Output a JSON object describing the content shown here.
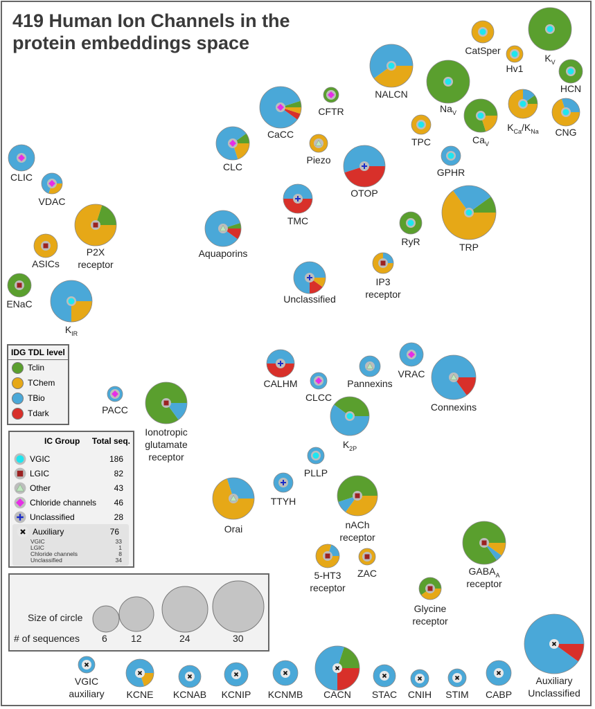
{
  "title_lines": [
    "419 Human Ion Channels in the",
    "protein embeddings space"
  ],
  "colors": {
    "Tclin": "#5a9f2e",
    "TChem": "#e6a817",
    "TBio": "#4aa8d8",
    "Tdark": "#d8302a",
    "VGIC": "#1ee6f0",
    "LGIC": "#9b2222",
    "Other": "#bfe8c0",
    "Chloride channels": "#e62ee6",
    "Unclassified": "#1a2cc8",
    "Auxiliary": "#111111"
  },
  "tdl_legend": {
    "title": "IDG TDL level",
    "items": [
      "Tclin",
      "TChem",
      "TBio",
      "Tdark"
    ]
  },
  "ic_legend": {
    "header_group": "IC Group",
    "header_total": "Total seq.",
    "items": [
      {
        "label": "VGIC",
        "total": "186",
        "marker": "circle-icon"
      },
      {
        "label": "LGIC",
        "total": "82",
        "marker": "square-icon"
      },
      {
        "label": "Other",
        "total": "43",
        "marker": "triangle-icon"
      },
      {
        "label": "Chloride channels",
        "total": "46",
        "marker": "diamond-icon"
      },
      {
        "label": "Unclassified",
        "total": "28",
        "marker": "plus-icon"
      },
      {
        "label": "Auxiliary",
        "total": "76",
        "marker": "x-icon"
      }
    ],
    "aux_breakdown": [
      {
        "label": "VGIC",
        "total": "33"
      },
      {
        "label": "LGIC",
        "total": "1"
      },
      {
        "label": "Chloride channels",
        "total": "8"
      },
      {
        "label": "Unclassified",
        "total": "34"
      }
    ]
  },
  "size_legend": {
    "size_label": "Size of circle",
    "count_label": "# of sequences",
    "values": [
      "6",
      "12",
      "24",
      "30"
    ]
  },
  "nodes": [
    {
      "label": "CatSper",
      "group": "VGIC",
      "tdl": {
        "TChem": 1
      }
    },
    {
      "label": "Hv1",
      "group": "VGIC",
      "tdl": {
        "TChem": 1
      }
    },
    {
      "label": "K",
      "sub": "V",
      "group": "VGIC",
      "tdl": {
        "Tclin": 1
      }
    },
    {
      "label": "HCN",
      "group": "VGIC",
      "tdl": {
        "Tclin": 1
      }
    },
    {
      "label": "NALCN",
      "group": "VGIC",
      "tdl": {
        "TBio": 0.6,
        "TChem": 0.4
      }
    },
    {
      "label": "Na",
      "sub": "V",
      "group": "VGIC",
      "tdl": {
        "Tclin": 1
      }
    },
    {
      "label": "Ca",
      "sub": "V",
      "group": "VGIC",
      "tdl": {
        "Tclin": 0.8,
        "TChem": 0.2
      }
    },
    {
      "label": "K",
      "sub": "Ca",
      "label2": "/K",
      "sub2": "Na",
      "group": "VGIC",
      "tdl": {
        "Tclin": 0.1,
        "TBio": 0.15,
        "TChem": 0.75
      }
    },
    {
      "label": "CNG",
      "group": "VGIC",
      "tdl": {
        "TBio": 0.3,
        "TChem": 0.7
      }
    },
    {
      "label": "TPC",
      "group": "VGIC",
      "tdl": {
        "TChem": 1
      }
    },
    {
      "label": "GPHR",
      "group": "VGIC",
      "tdl": {
        "TBio": 1
      }
    },
    {
      "label": "CFTR",
      "group": "Chloride channels",
      "tdl": {
        "Tclin": 1
      }
    },
    {
      "label": "CaCC",
      "group": "Chloride channels",
      "tdl": {
        "Tclin": 0.05,
        "TBio": 0.85,
        "Tdark": 0.05,
        "TChem": 0.05
      }
    },
    {
      "label": "CLC",
      "group": "Chloride channels",
      "tdl": {
        "Tclin": 0.1,
        "TBio": 0.7,
        "TChem": 0.2
      }
    },
    {
      "label": "Piezo",
      "group": "Other",
      "tdl": {
        "TChem": 1
      }
    },
    {
      "label": "OTOP",
      "group": "Unclassified",
      "tdl": {
        "TBio": 0.55,
        "Tdark": 0.45
      }
    },
    {
      "label": "CLIC",
      "group": "Chloride channels",
      "tdl": {
        "TBio": 1
      }
    },
    {
      "label": "VDAC",
      "group": "Chloride channels",
      "tdl": {
        "TBio": 0.7,
        "TChem": 0.3
      }
    },
    {
      "label": "P2X",
      "label_line2": "receptor",
      "group": "LGIC",
      "tdl": {
        "Tclin": 0.2,
        "TChem": 0.8
      }
    },
    {
      "label": "ASICs",
      "group": "LGIC",
      "tdl": {
        "TChem": 1
      }
    },
    {
      "label": "ENaC",
      "group": "LGIC",
      "tdl": {
        "Tclin": 1
      }
    },
    {
      "label": "K",
      "sub": "IR",
      "group": "VGIC",
      "tdl": {
        "TBio": 0.75,
        "TChem": 0.25
      }
    },
    {
      "label": "TMC",
      "group": "Unclassified",
      "tdl": {
        "TBio": 0.5,
        "Tdark": 0.5
      }
    },
    {
      "label": "Aquaporins",
      "group": "Other",
      "tdl": {
        "Tclin": 0.05,
        "TBio": 0.85,
        "Tdark": 0.1
      }
    },
    {
      "label": "TRP",
      "group": "VGIC",
      "tdl": {
        "Tclin": 0.1,
        "TBio": 0.25,
        "TChem": 0.65
      }
    },
    {
      "label": "RyR",
      "group": "VGIC",
      "tdl": {
        "Tclin": 1
      }
    },
    {
      "label": "IP3",
      "label_line2": "receptor",
      "group": "LGIC",
      "tdl": {
        "TBio": 0.25,
        "TChem": 0.75
      }
    },
    {
      "label": "Unclassified",
      "group": "Unclassified",
      "tdl": {
        "TBio": 0.75,
        "Tdark": 0.15,
        "TChem": 0.1
      }
    },
    {
      "label": "CALHM",
      "group": "Unclassified",
      "tdl": {
        "TBio": 0.5,
        "Tdark": 0.5
      }
    },
    {
      "label": "CLCC",
      "group": "Chloride channels",
      "tdl": {
        "TBio": 1
      }
    },
    {
      "label": "Pannexins",
      "group": "Other",
      "tdl": {
        "TBio": 1
      }
    },
    {
      "label": "VRAC",
      "group": "Chloride channels",
      "tdl": {
        "TBio": 1
      }
    },
    {
      "label": "Connexins",
      "group": "Other",
      "tdl": {
        "TBio": 0.85,
        "Tdark": 0.15
      }
    },
    {
      "label": "PACC",
      "group": "Chloride channels",
      "tdl": {
        "TBio": 1
      }
    },
    {
      "label": "Ionotropic",
      "label_line2": "glutamate",
      "label_line3": "receptor",
      "group": "LGIC",
      "tdl": {
        "Tclin": 0.85,
        "TBio": 0.15
      }
    },
    {
      "label": "K",
      "sub": "2P",
      "group": "VGIC",
      "tdl": {
        "Tclin": 0.4,
        "TBio": 0.6
      }
    },
    {
      "label": "PLLP",
      "group": "VGIC",
      "tdl": {
        "TBio": 1
      }
    },
    {
      "label": "TTYH",
      "group": "Unclassified",
      "tdl": {
        "TBio": 1
      }
    },
    {
      "label": "Orai",
      "group": "Other",
      "tdl": {
        "TBio": 0.3,
        "TChem": 0.7
      }
    },
    {
      "label": "nACh",
      "label_line2": "receptor",
      "group": "LGIC",
      "tdl": {
        "Tclin": 0.55,
        "TBio": 0.1,
        "TChem": 0.35
      }
    },
    {
      "label": "5-HT3",
      "label_line2": "receptor",
      "group": "LGIC",
      "tdl": {
        "TBio": 0.2,
        "TChem": 0.8
      }
    },
    {
      "label": "ZAC",
      "group": "LGIC",
      "tdl": {
        "TChem": 1
      }
    },
    {
      "label": "GABA",
      "sub": "A",
      "label_line2": "receptor",
      "group": "LGIC",
      "tdl": {
        "Tclin": 0.85,
        "TBio": 0.05,
        "TChem": 0.1
      }
    },
    {
      "label": "Glycine",
      "label_line2": "receptor",
      "group": "LGIC",
      "tdl": {
        "Tclin": 0.6,
        "TChem": 0.4
      }
    },
    {
      "label": "VGIC",
      "label_line2": "auxiliary",
      "group": "Auxiliary",
      "tdl": {
        "TBio": 1
      }
    },
    {
      "label": "KCNE",
      "group": "Auxiliary",
      "tdl": {
        "TBio": 0.8,
        "TChem": 0.2
      }
    },
    {
      "label": "KCNAB",
      "group": "Auxiliary",
      "tdl": {
        "TBio": 1
      }
    },
    {
      "label": "KCNIP",
      "group": "Auxiliary",
      "tdl": {
        "TBio": 1
      }
    },
    {
      "label": "KCNMB",
      "group": "Auxiliary",
      "tdl": {
        "TBio": 1
      }
    },
    {
      "label": "CACN",
      "group": "Auxiliary",
      "tdl": {
        "Tclin": 0.2,
        "TBio": 0.55,
        "Tdark": 0.25
      }
    },
    {
      "label": "STAC",
      "group": "Auxiliary",
      "tdl": {
        "TBio": 1
      }
    },
    {
      "label": "CNIH",
      "group": "Auxiliary",
      "tdl": {
        "TBio": 1
      }
    },
    {
      "label": "STIM",
      "group": "Auxiliary",
      "tdl": {
        "TBio": 1
      }
    },
    {
      "label": "CABP",
      "group": "Auxiliary",
      "tdl": {
        "TBio": 1
      }
    },
    {
      "label": "Auxiliary",
      "label_line2": "Unclassified",
      "group": "Auxiliary",
      "tdl": {
        "TBio": 0.9,
        "Tdark": 0.1
      }
    }
  ]
}
